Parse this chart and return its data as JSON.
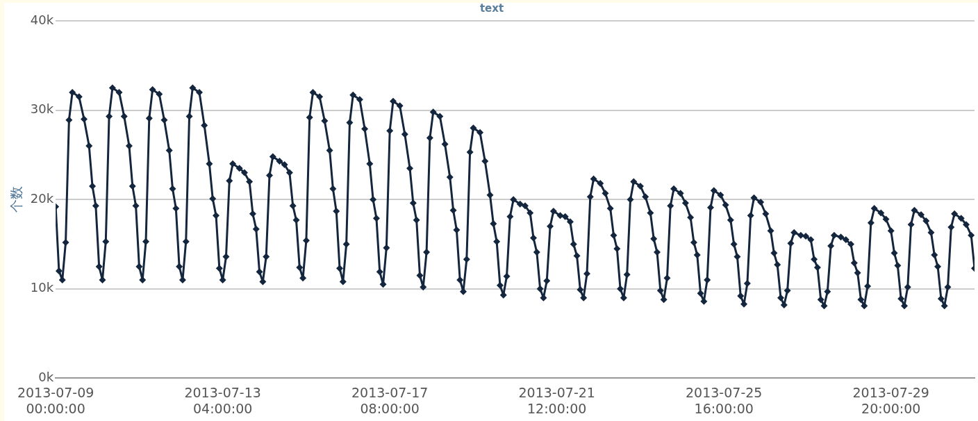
{
  "chart_data": {
    "type": "line",
    "title": "text",
    "ylabel": "个数",
    "x": [
      "2013-07-09T00:00",
      "2013-07-09T02:00",
      "2013-07-09T04:00",
      "2013-07-09T06:00",
      "2013-07-09T08:00",
      "2013-07-09T10:00",
      "2013-07-09T14:00",
      "2013-07-09T17:00",
      "2013-07-09T20:00",
      "2013-07-09T22:00",
      "2013-07-10T00:00",
      "2013-07-10T02:00",
      "2013-07-10T04:00",
      "2013-07-10T06:00",
      "2013-07-10T08:00",
      "2013-07-10T10:00",
      "2013-07-10T14:00",
      "2013-07-10T17:00",
      "2013-07-10T20:00",
      "2013-07-10T22:00",
      "2013-07-11T00:00",
      "2013-07-11T02:00",
      "2013-07-11T04:00",
      "2013-07-11T06:00",
      "2013-07-11T08:00",
      "2013-07-11T10:00",
      "2013-07-11T14:00",
      "2013-07-11T17:00",
      "2013-07-11T20:00",
      "2013-07-11T22:00",
      "2013-07-12T00:00",
      "2013-07-12T02:00",
      "2013-07-12T04:00",
      "2013-07-12T06:00",
      "2013-07-12T08:00",
      "2013-07-12T10:00",
      "2013-07-12T14:00",
      "2013-07-12T17:00",
      "2013-07-12T20:00",
      "2013-07-12T22:00",
      "2013-07-13T00:00",
      "2013-07-13T02:00",
      "2013-07-13T04:00",
      "2013-07-13T06:00",
      "2013-07-13T08:00",
      "2013-07-13T10:00",
      "2013-07-13T14:00",
      "2013-07-13T17:00",
      "2013-07-13T20:00",
      "2013-07-13T22:00",
      "2013-07-14T00:00",
      "2013-07-14T02:00",
      "2013-07-14T04:00",
      "2013-07-14T06:00",
      "2013-07-14T08:00",
      "2013-07-14T10:00",
      "2013-07-14T14:00",
      "2013-07-14T17:00",
      "2013-07-14T20:00",
      "2013-07-14T22:00",
      "2013-07-15T00:00",
      "2013-07-15T02:00",
      "2013-07-15T04:00",
      "2013-07-15T06:00",
      "2013-07-15T08:00",
      "2013-07-15T10:00",
      "2013-07-15T14:00",
      "2013-07-15T17:00",
      "2013-07-15T20:00",
      "2013-07-15T22:00",
      "2013-07-16T00:00",
      "2013-07-16T02:00",
      "2013-07-16T04:00",
      "2013-07-16T06:00",
      "2013-07-16T08:00",
      "2013-07-16T10:00",
      "2013-07-16T14:00",
      "2013-07-16T17:00",
      "2013-07-16T20:00",
      "2013-07-16T22:00",
      "2013-07-17T00:00",
      "2013-07-17T02:00",
      "2013-07-17T04:00",
      "2013-07-17T06:00",
      "2013-07-17T08:00",
      "2013-07-17T10:00",
      "2013-07-17T14:00",
      "2013-07-17T17:00",
      "2013-07-17T20:00",
      "2013-07-17T22:00",
      "2013-07-18T00:00",
      "2013-07-18T02:00",
      "2013-07-18T04:00",
      "2013-07-18T06:00",
      "2013-07-18T08:00",
      "2013-07-18T10:00",
      "2013-07-18T14:00",
      "2013-07-18T17:00",
      "2013-07-18T20:00",
      "2013-07-18T22:00",
      "2013-07-19T00:00",
      "2013-07-19T02:00",
      "2013-07-19T04:00",
      "2013-07-19T06:00",
      "2013-07-19T08:00",
      "2013-07-19T10:00",
      "2013-07-19T14:00",
      "2013-07-19T17:00",
      "2013-07-19T20:00",
      "2013-07-19T22:00",
      "2013-07-20T00:00",
      "2013-07-20T02:00",
      "2013-07-20T04:00",
      "2013-07-20T06:00",
      "2013-07-20T08:00",
      "2013-07-20T10:00",
      "2013-07-20T14:00",
      "2013-07-20T17:00",
      "2013-07-20T20:00",
      "2013-07-20T22:00",
      "2013-07-21T00:00",
      "2013-07-21T02:00",
      "2013-07-21T04:00",
      "2013-07-21T06:00",
      "2013-07-21T08:00",
      "2013-07-21T10:00",
      "2013-07-21T14:00",
      "2013-07-21T17:00",
      "2013-07-21T20:00",
      "2013-07-21T22:00",
      "2013-07-22T00:00",
      "2013-07-22T02:00",
      "2013-07-22T04:00",
      "2013-07-22T06:00",
      "2013-07-22T08:00",
      "2013-07-22T10:00",
      "2013-07-22T14:00",
      "2013-07-22T17:00",
      "2013-07-22T20:00",
      "2013-07-22T22:00",
      "2013-07-23T00:00",
      "2013-07-23T02:00",
      "2013-07-23T04:00",
      "2013-07-23T06:00",
      "2013-07-23T08:00",
      "2013-07-23T10:00",
      "2013-07-23T14:00",
      "2013-07-23T17:00",
      "2013-07-23T20:00",
      "2013-07-23T22:00",
      "2013-07-24T00:00",
      "2013-07-24T02:00",
      "2013-07-24T04:00",
      "2013-07-24T06:00",
      "2013-07-24T08:00",
      "2013-07-24T10:00",
      "2013-07-24T14:00",
      "2013-07-24T17:00",
      "2013-07-24T20:00",
      "2013-07-24T22:00",
      "2013-07-25T00:00",
      "2013-07-25T02:00",
      "2013-07-25T04:00",
      "2013-07-25T06:00",
      "2013-07-25T08:00",
      "2013-07-25T10:00",
      "2013-07-25T14:00",
      "2013-07-25T17:00",
      "2013-07-25T20:00",
      "2013-07-25T22:00",
      "2013-07-26T00:00",
      "2013-07-26T02:00",
      "2013-07-26T04:00",
      "2013-07-26T06:00",
      "2013-07-26T08:00",
      "2013-07-26T10:00",
      "2013-07-26T14:00",
      "2013-07-26T17:00",
      "2013-07-26T20:00",
      "2013-07-26T22:00",
      "2013-07-27T00:00",
      "2013-07-27T02:00",
      "2013-07-27T04:00",
      "2013-07-27T06:00",
      "2013-07-27T08:00",
      "2013-07-27T10:00",
      "2013-07-27T14:00",
      "2013-07-27T17:00",
      "2013-07-27T20:00",
      "2013-07-27T22:00",
      "2013-07-28T00:00",
      "2013-07-28T02:00",
      "2013-07-28T04:00",
      "2013-07-28T06:00",
      "2013-07-28T08:00",
      "2013-07-28T10:00",
      "2013-07-28T14:00",
      "2013-07-28T17:00",
      "2013-07-28T20:00",
      "2013-07-28T22:00",
      "2013-07-29T00:00",
      "2013-07-29T02:00",
      "2013-07-29T04:00",
      "2013-07-29T06:00",
      "2013-07-29T08:00",
      "2013-07-29T10:00",
      "2013-07-29T14:00",
      "2013-07-29T17:00",
      "2013-07-29T20:00",
      "2013-07-29T22:00",
      "2013-07-30T00:00",
      "2013-07-30T02:00",
      "2013-07-30T04:00",
      "2013-07-30T06:00",
      "2013-07-30T08:00",
      "2013-07-30T10:00",
      "2013-07-30T14:00",
      "2013-07-30T17:00",
      "2013-07-30T20:00",
      "2013-07-30T22:00",
      "2013-07-31T00:00",
      "2013-07-31T02:00",
      "2013-07-31T04:00",
      "2013-07-31T06:00",
      "2013-07-31T08:00",
      "2013-07-31T10:00",
      "2013-07-31T14:00",
      "2013-07-31T17:00",
      "2013-07-31T20:00",
      "2013-07-31T22:00"
    ],
    "series": [
      {
        "color": "#14263d",
        "values": [
          19200,
          12000,
          11000,
          15200,
          28900,
          32000,
          31500,
          29000,
          26000,
          21500,
          19300,
          12500,
          11000,
          15300,
          29300,
          32500,
          32000,
          29300,
          26000,
          21500,
          19300,
          12500,
          11000,
          15300,
          29100,
          32300,
          31800,
          28900,
          25500,
          21200,
          19000,
          12500,
          11000,
          15300,
          29300,
          32500,
          32000,
          28300,
          24000,
          20100,
          18200,
          12300,
          11000,
          13600,
          22100,
          24000,
          23500,
          23000,
          22000,
          18400,
          16700,
          11900,
          10800,
          13600,
          22700,
          24800,
          24300,
          23900,
          23000,
          19300,
          17700,
          12400,
          11200,
          15400,
          29200,
          32000,
          31500,
          28800,
          25500,
          21200,
          18700,
          12300,
          10800,
          15000,
          28600,
          31700,
          31200,
          27900,
          24000,
          20000,
          17900,
          11900,
          10500,
          14600,
          27700,
          31000,
          30500,
          27300,
          23500,
          19600,
          17700,
          11500,
          10200,
          14100,
          26900,
          29800,
          29300,
          26200,
          22500,
          18800,
          16600,
          11000,
          9700,
          13300,
          25300,
          28000,
          27500,
          24300,
          20500,
          17300,
          15300,
          10400,
          9300,
          11400,
          18100,
          20000,
          19500,
          19300,
          18500,
          15700,
          14100,
          10000,
          9000,
          10900,
          17000,
          18700,
          18200,
          18100,
          17500,
          15000,
          13700,
          9900,
          9000,
          11700,
          20300,
          22300,
          21800,
          20700,
          19000,
          16000,
          14500,
          10000,
          9000,
          11600,
          20000,
          22000,
          21500,
          20300,
          18500,
          15600,
          14100,
          9800,
          8800,
          11200,
          19300,
          21200,
          20700,
          19600,
          18000,
          15200,
          13800,
          9500,
          8600,
          11000,
          19100,
          21000,
          20500,
          19400,
          17700,
          15000,
          13600,
          9200,
          8300,
          10600,
          18200,
          20200,
          19700,
          18400,
          16500,
          14000,
          12700,
          9000,
          8200,
          9800,
          15100,
          16300,
          16000,
          15900,
          15500,
          13300,
          12400,
          8800,
          8100,
          9700,
          14800,
          16000,
          15800,
          15500,
          15000,
          12900,
          11800,
          8800,
          8100,
          10300,
          17400,
          19000,
          18500,
          17800,
          16500,
          14000,
          12600,
          8900,
          8100,
          10200,
          17200,
          18800,
          18300,
          17600,
          16300,
          13800,
          12500,
          8900,
          8100,
          10200,
          16900,
          18400,
          17900,
          17200,
          16000,
          12300
        ]
      }
    ],
    "xlim": [
      "2013-07-09T00:00",
      "2013-07-31T22:00"
    ],
    "xticks": [
      {
        "value": "2013-07-09T00:00",
        "label": "2013-07-09 00:00:00"
      },
      {
        "value": "2013-07-13T04:00",
        "label": "2013-07-13 04:00:00"
      },
      {
        "value": "2013-07-17T08:00",
        "label": "2013-07-17 08:00:00"
      },
      {
        "value": "2013-07-21T12:00",
        "label": "2013-07-21 12:00:00"
      },
      {
        "value": "2013-07-25T16:00",
        "label": "2013-07-25 16:00:00"
      },
      {
        "value": "2013-07-29T20:00",
        "label": "2013-07-29 20:00:00"
      }
    ],
    "ylim": [
      0,
      40000
    ],
    "yticks": [
      {
        "value": 0,
        "label": "0k"
      },
      {
        "value": 10000,
        "label": "10k"
      },
      {
        "value": 20000,
        "label": "20k"
      },
      {
        "value": 30000,
        "label": "30k"
      },
      {
        "value": 40000,
        "label": "40k"
      }
    ],
    "grid": "y",
    "marker": "diamond",
    "line_style": "solid"
  }
}
